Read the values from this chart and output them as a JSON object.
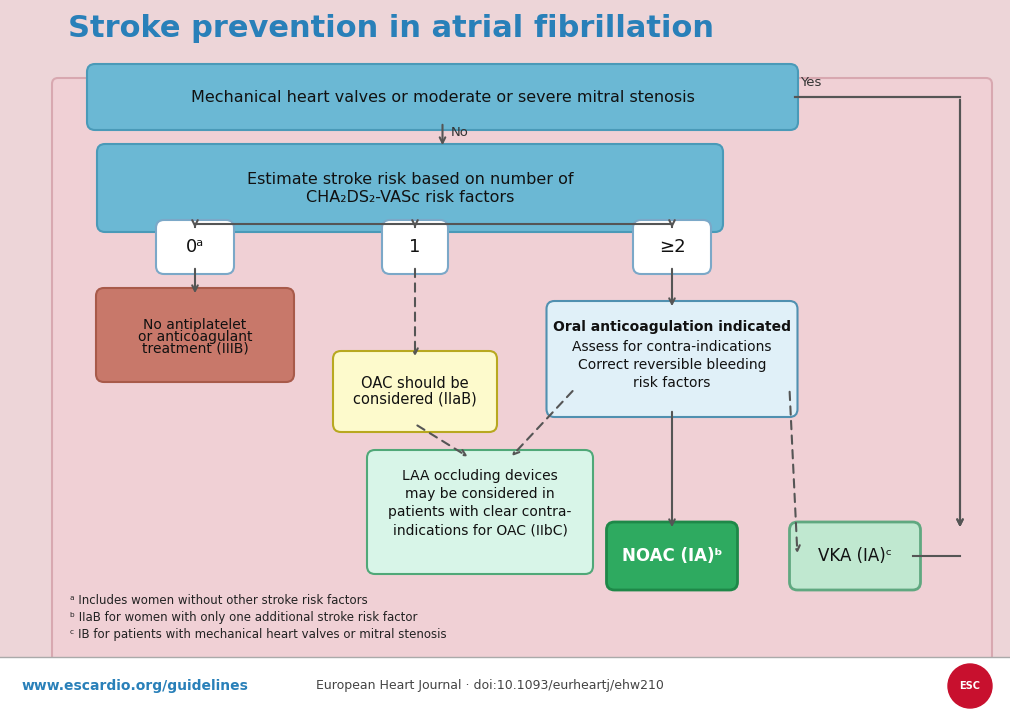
{
  "title": "Stroke prevention in atrial fibrillation",
  "title_color": "#2980B9",
  "outer_bg": "#EDD5D8",
  "main_panel_bg": "#F0D0D5",
  "main_panel_edge": "#D8A8B0",
  "footer_bg": "#FFFFFF",
  "box1_text": "Mechanical heart valves or moderate or severe mitral stenosis",
  "box1_color": "#6BB8D4",
  "box1_border": "#4A9AB8",
  "box2_line1": "Estimate stroke risk based on number of",
  "box2_line2": "CHA₂DS₂-VASc risk factors",
  "box2_color": "#6BB8D4",
  "box2_border": "#4A9AB8",
  "score0_text": "0ᵃ",
  "score1_text": "1",
  "score2_text": "≥2",
  "score_box_color": "#FFFFFF",
  "score_box_border": "#7BA8C8",
  "no_antip_line1": "No antiplatelet",
  "no_antip_line2": "or anticoagulant",
  "no_antip_line3": "treatment (IIIB)",
  "no_antip_color": "#C8786A",
  "no_antip_border": "#A85A4A",
  "oac_line1": "OAC should be",
  "oac_line2": "considered (IIaB)",
  "oac_color": "#FDFACC",
  "oac_border": "#B8A820",
  "oral_bold": "Oral anticoagulation indicated",
  "oral_line2": "Assess for contra-indications",
  "oral_line3": "Correct reversible bleeding",
  "oral_line4": "risk factors",
  "oral_color": "#E0F0F8",
  "oral_border": "#5090B0",
  "laa_line1": "LAA occluding devices",
  "laa_line2": "may be considered in",
  "laa_line3": "patients with clear contra-",
  "laa_line4": "indications for OAC (IIbC)",
  "laa_color": "#D8F5E8",
  "laa_border": "#50A878",
  "noac_text": "NOAC (IA)ᵇ",
  "noac_color": "#2EAA60",
  "noac_border": "#1E8848",
  "vka_text": "VKA (IA)ᶜ",
  "vka_color": "#C0E8D0",
  "vka_border": "#60A880",
  "footnote1": "ᵃ Includes women without other stroke risk factors",
  "footnote2": "ᵇ IIaB for women with only one additional stroke risk factor",
  "footnote3": "ᶜ IB for patients with mechanical heart valves or mitral stenosis",
  "footer_left": "www.escardio.org/guidelines",
  "footer_left_color": "#2980B9",
  "footer_center": "European Heart Journal · doi:10.1093/eurheartj/ehw210",
  "yes_label": "Yes",
  "no_label": "No",
  "arrow_color": "#555555",
  "dashed_arrow_color": "#555555"
}
